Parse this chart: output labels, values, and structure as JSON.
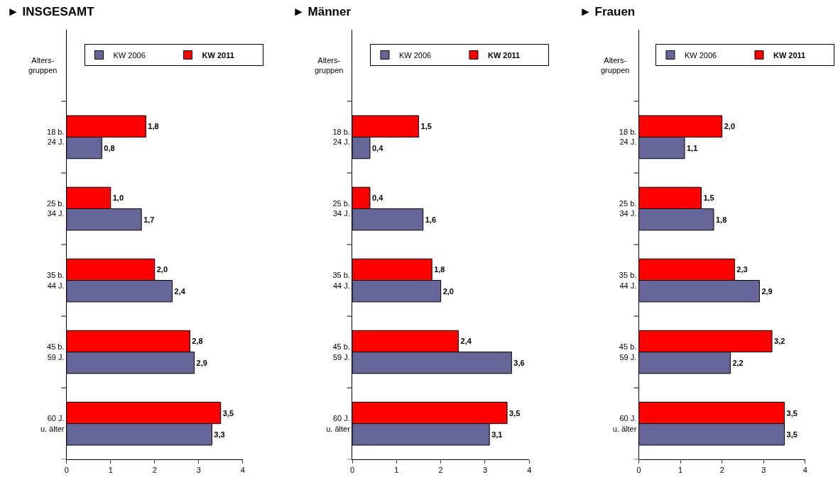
{
  "chart_data": [
    {
      "type": "bar",
      "orientation": "horizontal",
      "title": "► INSGESAMT",
      "ylabel": "Alters-\ngruppen",
      "categories": [
        "18 b.\n24 J.",
        "25 b.\n34 J.",
        "35 b.\n44 J.",
        "45 b.\n59 J.",
        "60 J.\nu. älter"
      ],
      "series": [
        {
          "name": "KW 2006",
          "color": "#666699",
          "values": [
            0.8,
            1.7,
            2.4,
            2.9,
            3.3
          ],
          "value_labels": [
            "0,8",
            "1,7",
            "2,4",
            "2,9",
            "3,3"
          ]
        },
        {
          "name": "KW 2011",
          "color": "#ff0000",
          "values": [
            1.8,
            1.0,
            2.0,
            2.8,
            3.5
          ],
          "value_labels": [
            "1,8",
            "1,0",
            "2,0",
            "2,8",
            "3,5"
          ]
        }
      ],
      "xlim": [
        0,
        4
      ],
      "xticks": [
        0,
        1,
        2,
        3,
        4
      ],
      "legend": "top"
    },
    {
      "type": "bar",
      "orientation": "horizontal",
      "title": "► Männer",
      "ylabel": "Alters-\ngruppen",
      "categories": [
        "18 b.\n24 J.",
        "25 b.\n34 J.",
        "35 b.\n44 J.",
        "45 b.\n59 J.",
        "60 J.\nu. älter"
      ],
      "series": [
        {
          "name": "KW 2006",
          "color": "#666699",
          "values": [
            0.4,
            1.6,
            2.0,
            3.6,
            3.1
          ],
          "value_labels": [
            "0,4",
            "1,6",
            "2,0",
            "3,6",
            "3,1"
          ]
        },
        {
          "name": "KW 2011",
          "color": "#ff0000",
          "values": [
            1.5,
            0.4,
            1.8,
            2.4,
            3.5
          ],
          "value_labels": [
            "1,5",
            "0,4",
            "1,8",
            "2,4",
            "3,5"
          ]
        }
      ],
      "xlim": [
        0,
        4
      ],
      "xticks": [
        0,
        1,
        2,
        3,
        4
      ],
      "legend": "top"
    },
    {
      "type": "bar",
      "orientation": "horizontal",
      "title": "► Frauen",
      "ylabel": "Alters-\ngruppen",
      "categories": [
        "18 b.\n24 J.",
        "25 b.\n34 J.",
        "35 b.\n44 J.",
        "45 b.\n59 J.",
        "60 J.\nu. älter"
      ],
      "series": [
        {
          "name": "KW 2006",
          "color": "#666699",
          "values": [
            1.1,
            1.8,
            2.9,
            2.2,
            3.5
          ],
          "value_labels": [
            "1,1",
            "1,8",
            "2,9",
            "2,2",
            "3,5"
          ]
        },
        {
          "name": "KW 2011",
          "color": "#ff0000",
          "values": [
            2.0,
            1.5,
            2.3,
            3.2,
            3.5
          ],
          "value_labels": [
            "2,0",
            "1,5",
            "2,3",
            "3,2",
            "3,5"
          ]
        }
      ],
      "xlim": [
        0,
        4
      ],
      "xticks": [
        0,
        1,
        2,
        3,
        4
      ],
      "legend": "top"
    }
  ]
}
